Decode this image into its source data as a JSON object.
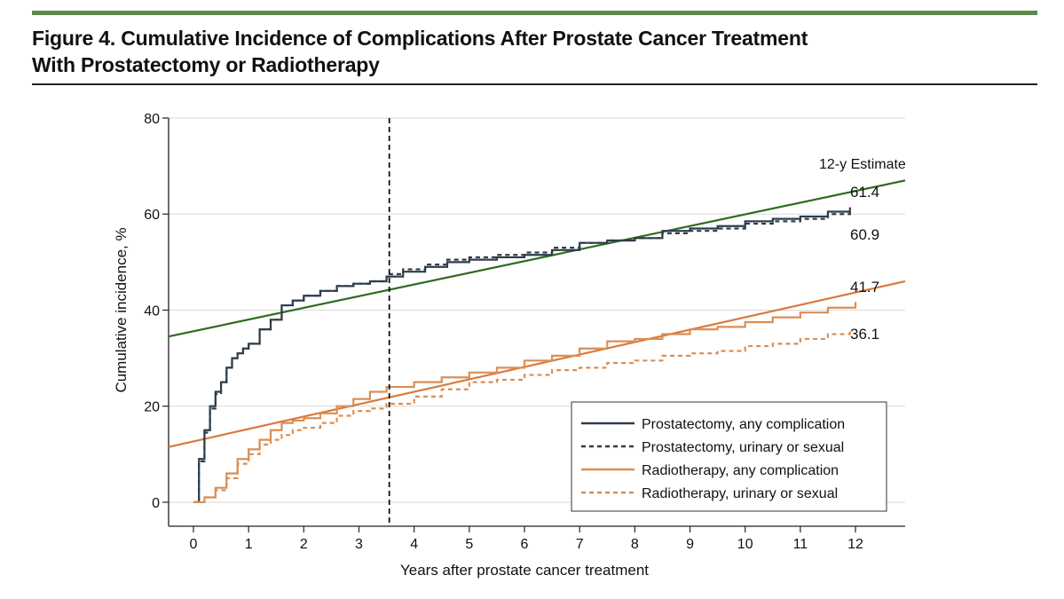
{
  "figure": {
    "title_line1": "Figure 4. Cumulative Incidence of Complications After Prostate Cancer Treatment",
    "title_line2": "With Prostatectomy or Radiotherapy",
    "accent_color": "#5b8a4b"
  },
  "chart_data": {
    "type": "line",
    "title": "Figure 4. Cumulative Incidence of Complications After Prostate Cancer Treatment With Prostatectomy or Radiotherapy",
    "xlabel": "Years after prostate cancer treatment",
    "ylabel": "Cumulative incidence, %",
    "xlim": [
      -0.45,
      12.9
    ],
    "ylim": [
      -5,
      80
    ],
    "xticks": [
      0,
      1,
      2,
      3,
      4,
      5,
      6,
      7,
      8,
      9,
      10,
      11,
      12
    ],
    "yticks": [
      0,
      20,
      40,
      60,
      80
    ],
    "grid": true,
    "legend_position": "bottom-right",
    "reference_line": {
      "x": 3.55,
      "style": "dashed"
    },
    "estimate_header": "12-y Estimate",
    "estimates": [
      "61.4",
      "60.9",
      "41.7",
      "36.1"
    ],
    "series": [
      {
        "name": "Prostatectomy, any complication",
        "color": "#2f3d4a",
        "dash": "solid",
        "x": [
          0,
          0.1,
          0.2,
          0.3,
          0.4,
          0.5,
          0.6,
          0.7,
          0.8,
          0.9,
          1.0,
          1.2,
          1.4,
          1.6,
          1.8,
          2.0,
          2.3,
          2.6,
          2.9,
          3.2,
          3.5,
          3.8,
          4.2,
          4.6,
          5.0,
          5.5,
          6.0,
          6.5,
          7.0,
          7.5,
          8.0,
          8.5,
          9.0,
          9.5,
          10.0,
          10.5,
          11.0,
          11.5,
          11.9
        ],
        "y": [
          0,
          9,
          15,
          20,
          23,
          25,
          28,
          30,
          31,
          32,
          33,
          36,
          38,
          41,
          42,
          43,
          44,
          45,
          45.5,
          46,
          47,
          48,
          49,
          50,
          50.5,
          51,
          51.5,
          52.5,
          54,
          54.5,
          55,
          56.5,
          57,
          57.5,
          58.5,
          59,
          59.5,
          60.5,
          61.4
        ]
      },
      {
        "name": "Prostatectomy, urinary or sexual",
        "color": "#2f3d4a",
        "dash": "dashed",
        "x": [
          0,
          0.1,
          0.2,
          0.3,
          0.4,
          0.5,
          0.6,
          0.7,
          0.8,
          0.9,
          1.0,
          1.2,
          1.4,
          1.6,
          1.8,
          2.0,
          2.3,
          2.6,
          2.9,
          3.2,
          3.5,
          3.8,
          4.2,
          4.6,
          5.0,
          5.5,
          6.0,
          6.5,
          7.0,
          7.5,
          8.0,
          8.5,
          9.0,
          9.5,
          10.0,
          10.5,
          11.0,
          11.5,
          11.9
        ],
        "y": [
          0,
          8.5,
          14.5,
          19.5,
          22.5,
          25,
          28,
          30,
          31,
          32,
          33,
          36,
          38,
          41,
          42,
          43,
          44,
          45,
          45.5,
          46,
          47.5,
          48.5,
          49.5,
          50.5,
          51,
          51.5,
          52,
          53,
          54,
          54.5,
          55,
          56,
          56.5,
          57,
          58,
          58.5,
          59,
          60,
          60.9
        ]
      },
      {
        "name": "Radiotherapy, any complication",
        "color": "#d98f56",
        "dash": "solid",
        "x": [
          0,
          0.2,
          0.4,
          0.6,
          0.8,
          1.0,
          1.2,
          1.4,
          1.6,
          1.8,
          2.0,
          2.3,
          2.6,
          2.9,
          3.2,
          3.5,
          4.0,
          4.5,
          5.0,
          5.5,
          6.0,
          6.5,
          7.0,
          7.5,
          8.0,
          8.5,
          9.0,
          9.5,
          10.0,
          10.5,
          11.0,
          11.5,
          12.0
        ],
        "y": [
          0,
          1,
          3,
          6,
          9,
          11,
          13,
          15,
          16.5,
          17,
          17.5,
          18.5,
          20,
          21.5,
          23,
          24,
          25,
          26,
          27,
          28,
          29.5,
          30.5,
          32,
          33.5,
          34,
          35,
          36,
          36.5,
          37.5,
          38.5,
          39.5,
          40.5,
          41.7
        ]
      },
      {
        "name": "Radiotherapy, urinary or sexual",
        "color": "#d98f56",
        "dash": "dashed",
        "x": [
          0,
          0.2,
          0.4,
          0.6,
          0.8,
          1.0,
          1.2,
          1.4,
          1.6,
          1.8,
          2.0,
          2.3,
          2.6,
          2.9,
          3.2,
          3.5,
          4.0,
          4.5,
          5.0,
          5.5,
          6.0,
          6.5,
          7.0,
          7.5,
          8.0,
          8.5,
          9.0,
          9.5,
          10.0,
          10.5,
          11.0,
          11.5,
          11.9
        ],
        "y": [
          0,
          1,
          2.5,
          5,
          8,
          10,
          12,
          13,
          14,
          15,
          15.5,
          16.5,
          18,
          19,
          19.5,
          20.5,
          22,
          23.5,
          25,
          25.5,
          26.5,
          27.5,
          28,
          29,
          29.5,
          30.5,
          31,
          31.5,
          32.5,
          33,
          34,
          35,
          36.1
        ]
      }
    ],
    "trend_lines": [
      {
        "color": "#2e6b22",
        "x": [
          -0.45,
          12.9
        ],
        "y": [
          34.5,
          67.0
        ]
      },
      {
        "color": "#d97a3e",
        "x": [
          -0.45,
          12.9
        ],
        "y": [
          11.5,
          46.0
        ]
      }
    ]
  }
}
